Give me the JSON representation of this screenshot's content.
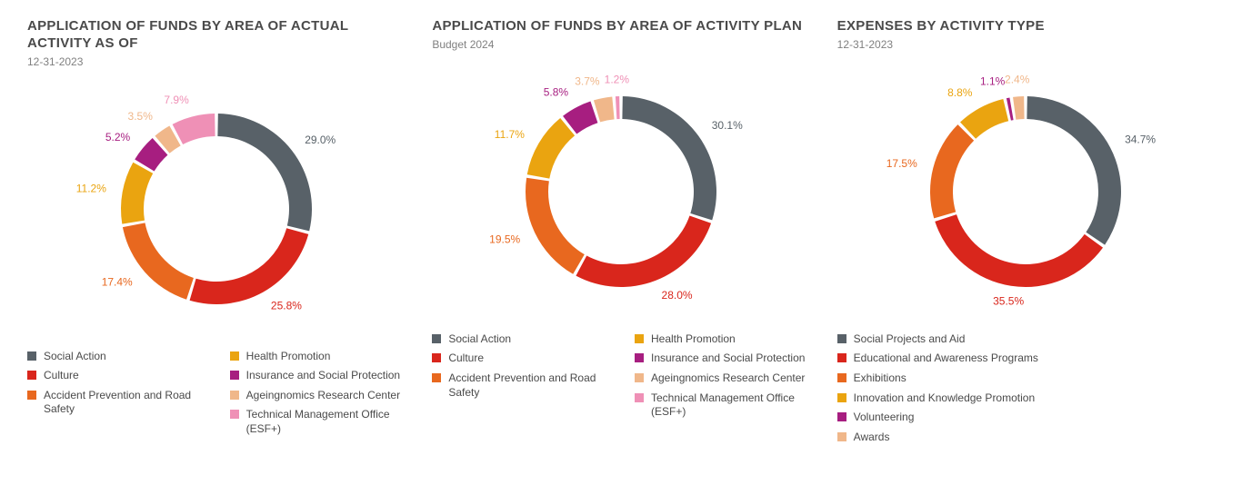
{
  "background_color": "#ffffff",
  "title_color": "#4a4a4a",
  "subtitle_color": "#808080",
  "legend_text_color": "#4a4a4a",
  "title_fontsize": 15,
  "subtitle_fontsize": 12,
  "label_fontsize": 12,
  "legend_fontsize": 12,
  "donut_outer_radius": 105,
  "donut_inner_radius": 80,
  "slice_gap_deg": 2,
  "start_angle_deg": -90,
  "label_offset": 18,
  "charts": [
    {
      "title": "APPLICATION OF FUNDS BY AREA OF ACTUAL ACTIVITY AS OF",
      "subtitle": "12-31-2023",
      "legend_columns": 2,
      "slices": [
        {
          "label": "Social Action",
          "value": 29.0,
          "display": "29.0%",
          "color": "#586168"
        },
        {
          "label": "Culture",
          "value": 25.8,
          "display": "25.8%",
          "color": "#d9261c"
        },
        {
          "label": "Accident Prevention and Road Safety",
          "value": 17.4,
          "display": "17.4%",
          "color": "#e8681f"
        },
        {
          "label": "Health Promotion",
          "value": 11.2,
          "display": "11.2%",
          "color": "#eaa410"
        },
        {
          "label": "Insurance and Social Protection",
          "value": 5.2,
          "display": "5.2%",
          "color": "#a71e80"
        },
        {
          "label": "Ageingnomics Research Center",
          "value": 3.5,
          "display": "3.5%",
          "color": "#f0b78a"
        },
        {
          "label": "Technical Management Office (ESF+)",
          "value": 7.9,
          "display": "7.9%",
          "color": "#ef90b6"
        }
      ]
    },
    {
      "title": "APPLICATION OF FUNDS BY AREA OF ACTIVITY PLAN",
      "subtitle": "Budget 2024",
      "legend_columns": 2,
      "slices": [
        {
          "label": "Social Action",
          "value": 30.1,
          "display": "30.1%",
          "color": "#586168"
        },
        {
          "label": "Culture",
          "value": 28.0,
          "display": "28.0%",
          "color": "#d9261c"
        },
        {
          "label": "Accident Prevention and Road Safety",
          "value": 19.5,
          "display": "19.5%",
          "color": "#e8681f"
        },
        {
          "label": "Health Promotion",
          "value": 11.7,
          "display": "11.7%",
          "color": "#eaa410"
        },
        {
          "label": "Insurance and Social Protection",
          "value": 5.8,
          "display": "5.8%",
          "color": "#a71e80"
        },
        {
          "label": "Ageingnomics Research Center",
          "value": 3.7,
          "display": "3.7%",
          "color": "#f0b78a"
        },
        {
          "label": "Technical Management Office (ESF+)",
          "value": 1.2,
          "display": "1.2%",
          "color": "#ef90b6"
        }
      ]
    },
    {
      "title": "EXPENSES BY ACTIVITY TYPE",
      "subtitle": "12-31-2023",
      "legend_columns": 1,
      "slices": [
        {
          "label": "Social Projects and Aid",
          "value": 34.7,
          "display": "34.7%",
          "color": "#586168"
        },
        {
          "label": "Educational and Awareness Programs",
          "value": 35.5,
          "display": "35.5%",
          "color": "#d9261c"
        },
        {
          "label": "Exhibitions",
          "value": 17.5,
          "display": "17.5%",
          "color": "#e8681f"
        },
        {
          "label": "Innovation and Knowledge Promotion",
          "value": 8.8,
          "display": "8.8%",
          "color": "#eaa410"
        },
        {
          "label": "Volunteering",
          "value": 1.1,
          "display": "1.1%",
          "color": "#a71e80"
        },
        {
          "label": "Awards",
          "value": 2.4,
          "display": "2.4%",
          "color": "#f0b78a"
        }
      ]
    }
  ]
}
